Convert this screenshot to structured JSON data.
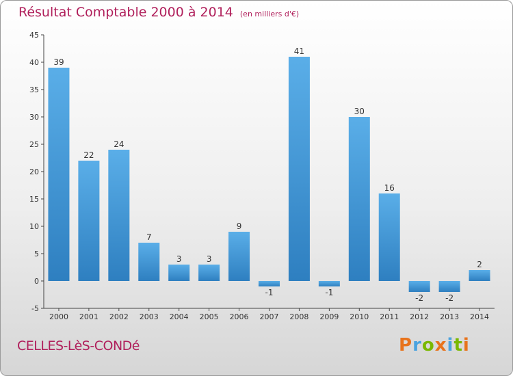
{
  "title": "Résultat Comptable 2000 à 2014",
  "unit_note": "(en milliers d'€)",
  "commune": "CELLES-LèS-CONDé",
  "logo": {
    "letters": [
      "P",
      "r",
      "o",
      "x",
      "i",
      "t",
      "i"
    ],
    "colors": [
      "#e8731c",
      "#4aa3df",
      "#7ab800",
      "#e8731c",
      "#4aa3df",
      "#7ab800",
      "#e8731c"
    ]
  },
  "colors": {
    "bar_top": "#5aaee8",
    "bar_bottom": "#2e7fc0",
    "title": "#b01f5b"
  },
  "chart_data": {
    "type": "bar",
    "categories": [
      "2000",
      "2001",
      "2002",
      "2003",
      "2004",
      "2005",
      "2006",
      "2007",
      "2008",
      "2009",
      "2010",
      "2011",
      "2012",
      "2013",
      "2014"
    ],
    "values": [
      39,
      22,
      24,
      7,
      3,
      3,
      9,
      -1,
      41,
      -1,
      30,
      16,
      -2,
      -2,
      2
    ],
    "value_labels": [
      "39",
      "22",
      "24",
      "7",
      "3",
      "3",
      "9",
      "-1",
      "41",
      "-1",
      "30",
      "16",
      "-2",
      "-2",
      "2"
    ],
    "ylim": [
      -5,
      45
    ],
    "yticks": [
      -5,
      0,
      5,
      10,
      15,
      20,
      25,
      30,
      35,
      40,
      45
    ],
    "grid": false
  }
}
